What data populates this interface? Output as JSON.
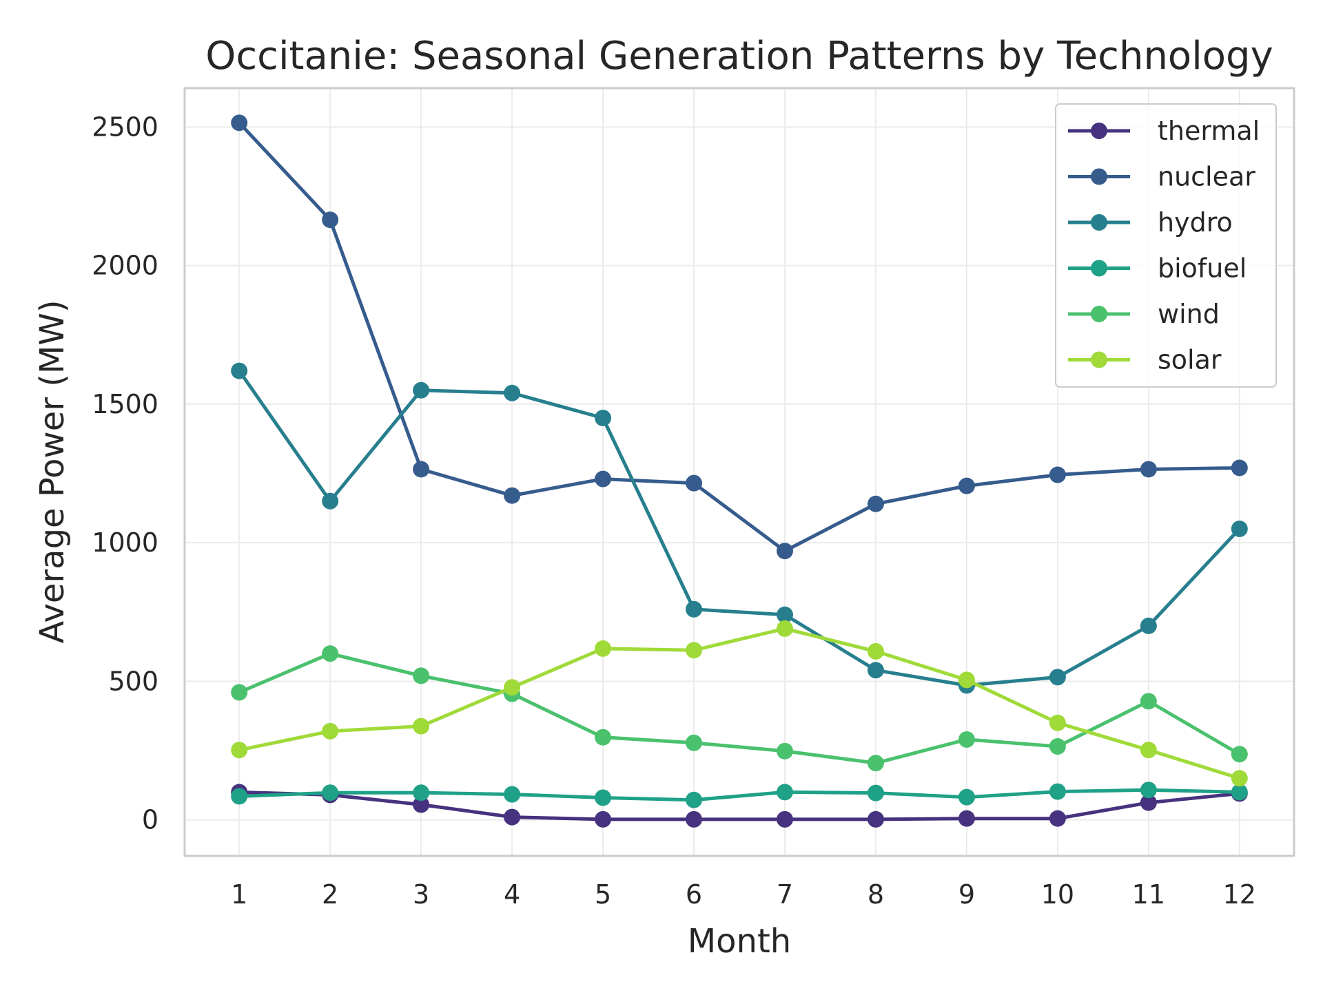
{
  "chart_data": {
    "type": "line",
    "title": "Occitanie: Seasonal Generation Patterns by Technology",
    "xlabel": "Month",
    "ylabel": "Average Power (MW)",
    "x": [
      1,
      2,
      3,
      4,
      5,
      6,
      7,
      8,
      9,
      10,
      11,
      12
    ],
    "x_ticks": [
      "1",
      "2",
      "3",
      "4",
      "5",
      "6",
      "7",
      "8",
      "9",
      "10",
      "11",
      "12"
    ],
    "y_ticks": [
      "0",
      "500",
      "1000",
      "1500",
      "2000",
      "2500"
    ],
    "xlim": [
      0.4,
      12.6
    ],
    "ylim": [
      -130,
      2640
    ],
    "grid": true,
    "legend_position": "top-right",
    "series": [
      {
        "name": "thermal",
        "color": "#46327e",
        "values": [
          100,
          90,
          55,
          10,
          2,
          2,
          2,
          2,
          5,
          5,
          62,
          95
        ]
      },
      {
        "name": "nuclear",
        "color": "#365c8d",
        "values": [
          2515,
          2165,
          1265,
          1170,
          1230,
          1215,
          970,
          1140,
          1205,
          1245,
          1265,
          1270
        ]
      },
      {
        "name": "hydro",
        "color": "#277f8e",
        "values": [
          1620,
          1150,
          1550,
          1540,
          1450,
          760,
          740,
          540,
          485,
          515,
          700,
          1050
        ]
      },
      {
        "name": "biofuel",
        "color": "#1fa187",
        "values": [
          85,
          98,
          98,
          92,
          80,
          72,
          100,
          97,
          82,
          102,
          108,
          100
        ]
      },
      {
        "name": "wind",
        "color": "#4ac16d",
        "values": [
          460,
          600,
          520,
          455,
          298,
          278,
          248,
          205,
          290,
          265,
          428,
          237
        ]
      },
      {
        "name": "solar",
        "color": "#a0da39",
        "values": [
          252,
          320,
          338,
          478,
          618,
          612,
          690,
          608,
          505,
          350,
          252,
          150
        ]
      }
    ]
  }
}
